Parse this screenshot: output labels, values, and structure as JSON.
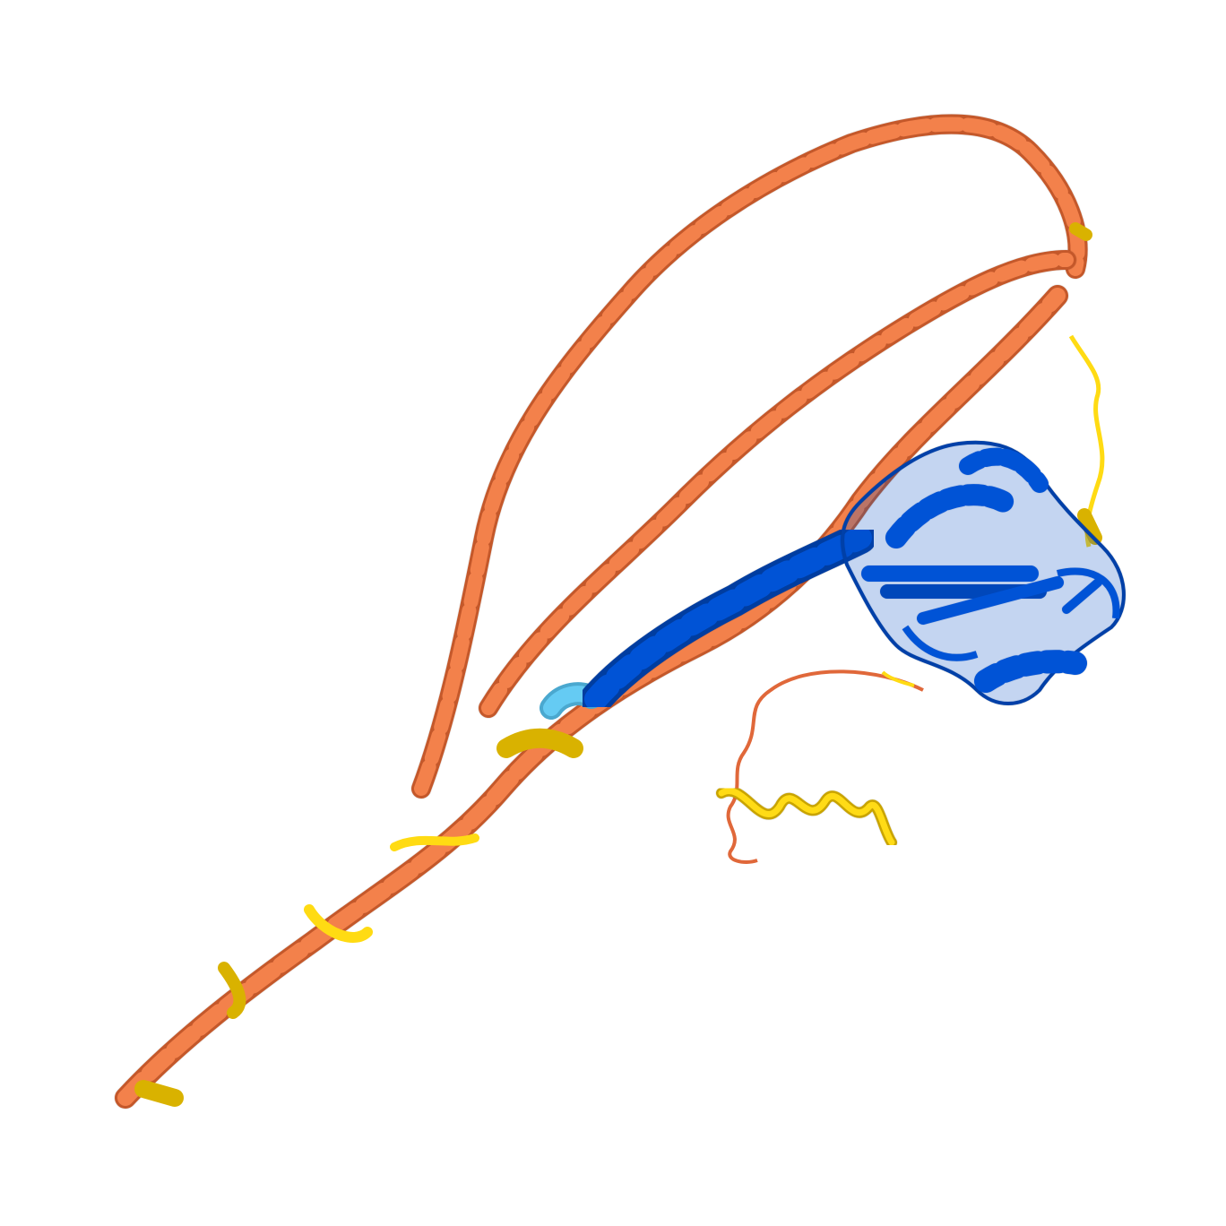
{
  "image": {
    "subject": "protein-ribbon-structure",
    "background": "#ffffff",
    "palette": {
      "very_high_confidence": "#0053d6",
      "confident": "#65cbf3",
      "low_confidence": "#ffdb13",
      "very_low_confidence": "#ff7d45"
    }
  }
}
